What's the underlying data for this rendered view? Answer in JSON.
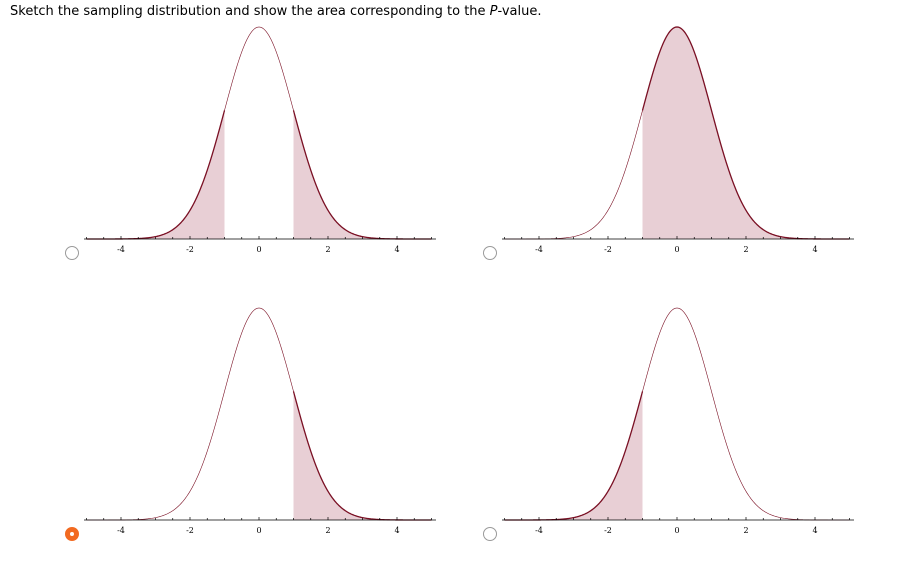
{
  "question": {
    "text_before": "Sketch the sampling distribution and show the area corresponding to the ",
    "text_italic": "P",
    "text_after": "-value."
  },
  "colors": {
    "curve": "#7a1024",
    "shade": "#e8cfd5",
    "radio_selected": "#f26a21"
  },
  "options": [
    {
      "id": "a",
      "selected": false,
      "shade": "two-tailed",
      "critical_values": [
        -1,
        1
      ]
    },
    {
      "id": "b",
      "selected": false,
      "shade": "right-of",
      "critical_values": [
        -1
      ]
    },
    {
      "id": "c",
      "selected": true,
      "shade": "right-of",
      "critical_values": [
        1
      ]
    },
    {
      "id": "d",
      "selected": false,
      "shade": "left-of",
      "critical_values": [
        -1
      ]
    }
  ],
  "chart_data": {
    "type": "area",
    "distribution": "standard normal",
    "xlim": [
      -5,
      5
    ],
    "tick_labels": [
      "-4",
      "-2",
      "0",
      "2",
      "4"
    ],
    "tick_values": [
      -4,
      -2,
      0,
      2,
      4
    ],
    "minor_tick_step": 0.5
  }
}
